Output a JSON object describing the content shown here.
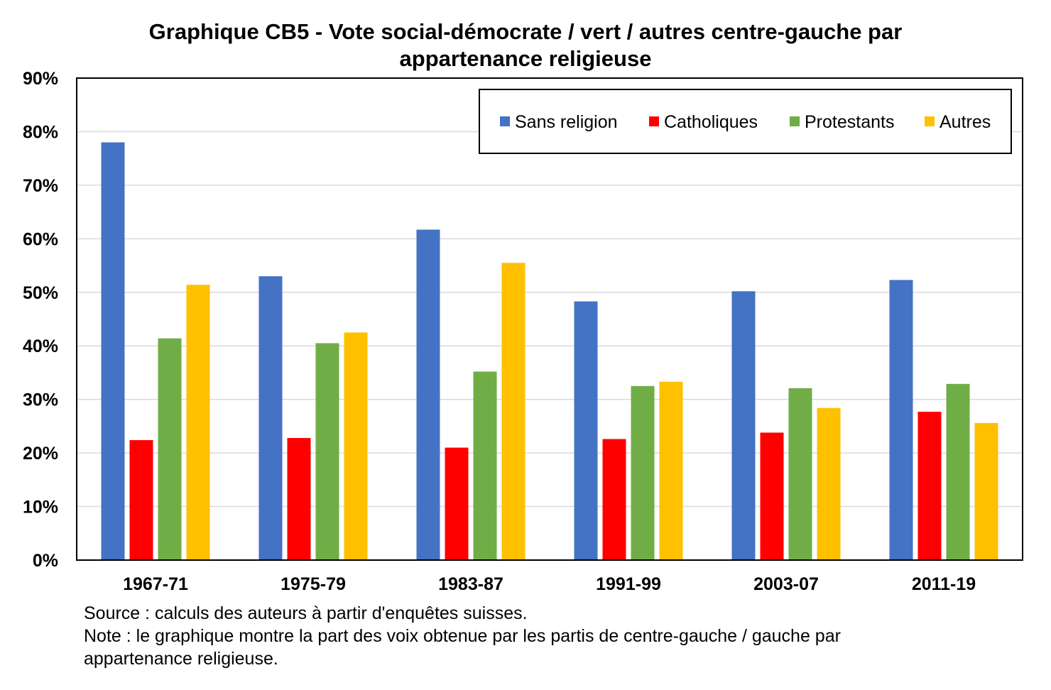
{
  "title_line1": "Graphique CB5 - Vote social-démocrate / vert / autres centre-gauche par",
  "title_line2": "appartenance religieuse",
  "source": "Source : calculs des auteurs à partir d'enquêtes suisses.",
  "note_line1": "Note : le graphique montre la part des voix obtenue par les partis de centre-gauche / gauche par",
  "note_line2": "appartenance religieuse.",
  "chart_data": {
    "type": "bar",
    "categories": [
      "1967-71",
      "1975-79",
      "1983-87",
      "1991-99",
      "2003-07",
      "2011-19"
    ],
    "series": [
      {
        "name": "Sans religion",
        "color": "#4472C4",
        "values": [
          78.0,
          53.0,
          61.7,
          48.3,
          50.2,
          52.3
        ]
      },
      {
        "name": "Catholiques",
        "color": "#FF0000",
        "values": [
          22.4,
          22.8,
          21.0,
          22.6,
          23.8,
          27.7
        ]
      },
      {
        "name": "Protestants",
        "color": "#70AD47",
        "values": [
          41.4,
          40.5,
          35.2,
          32.5,
          32.1,
          32.9
        ]
      },
      {
        "name": "Autres",
        "color": "#FFC000",
        "values": [
          51.4,
          42.5,
          55.5,
          33.3,
          28.4,
          25.6
        ]
      }
    ],
    "ylim": [
      0,
      90
    ],
    "yticks": [
      0,
      10,
      20,
      30,
      40,
      50,
      60,
      70,
      80,
      90
    ],
    "ytick_labels": [
      "0%",
      "10%",
      "20%",
      "30%",
      "40%",
      "50%",
      "60%",
      "70%",
      "80%",
      "90%"
    ],
    "grid": true,
    "legend_position": "top-right"
  }
}
